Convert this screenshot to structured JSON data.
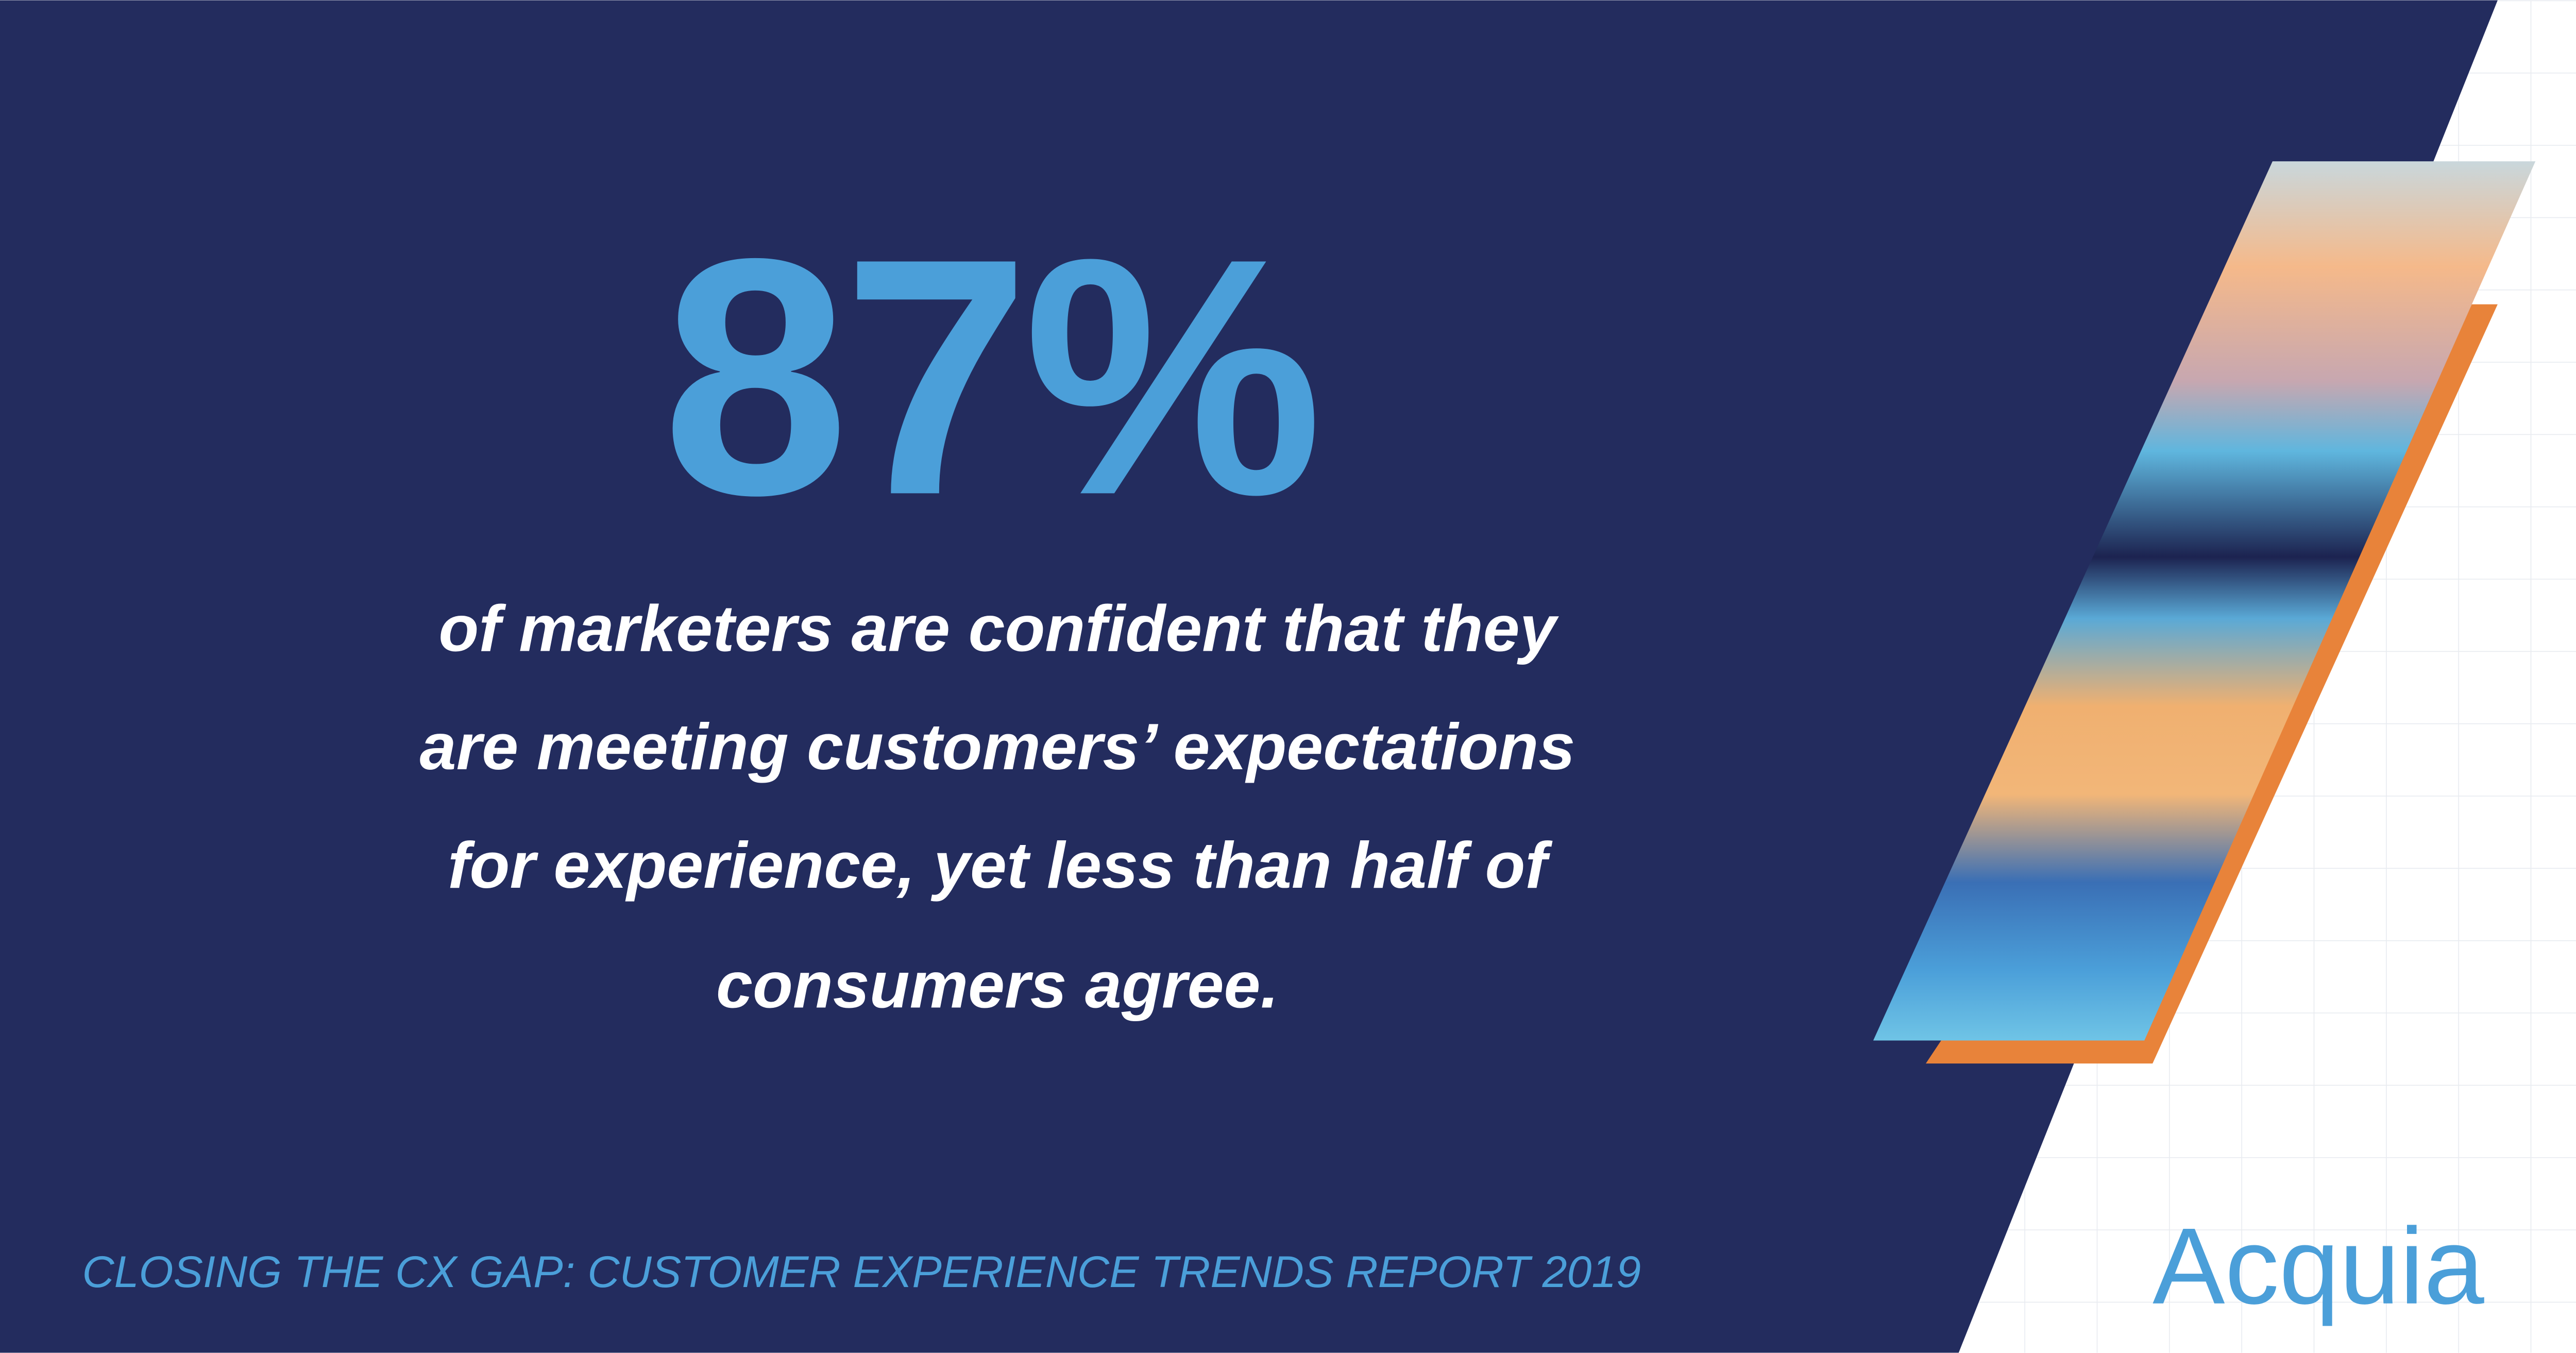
{
  "stat": "87%",
  "description": [
    "of marketers are confident that they",
    "are meeting customers’ expectations",
    "for experience, yet less than half of",
    "consumers agree."
  ],
  "footer": "CLOSING THE CX GAP: CUSTOMER EXPERIENCE TRENDS REPORT 2019",
  "brand": "Acquia"
}
